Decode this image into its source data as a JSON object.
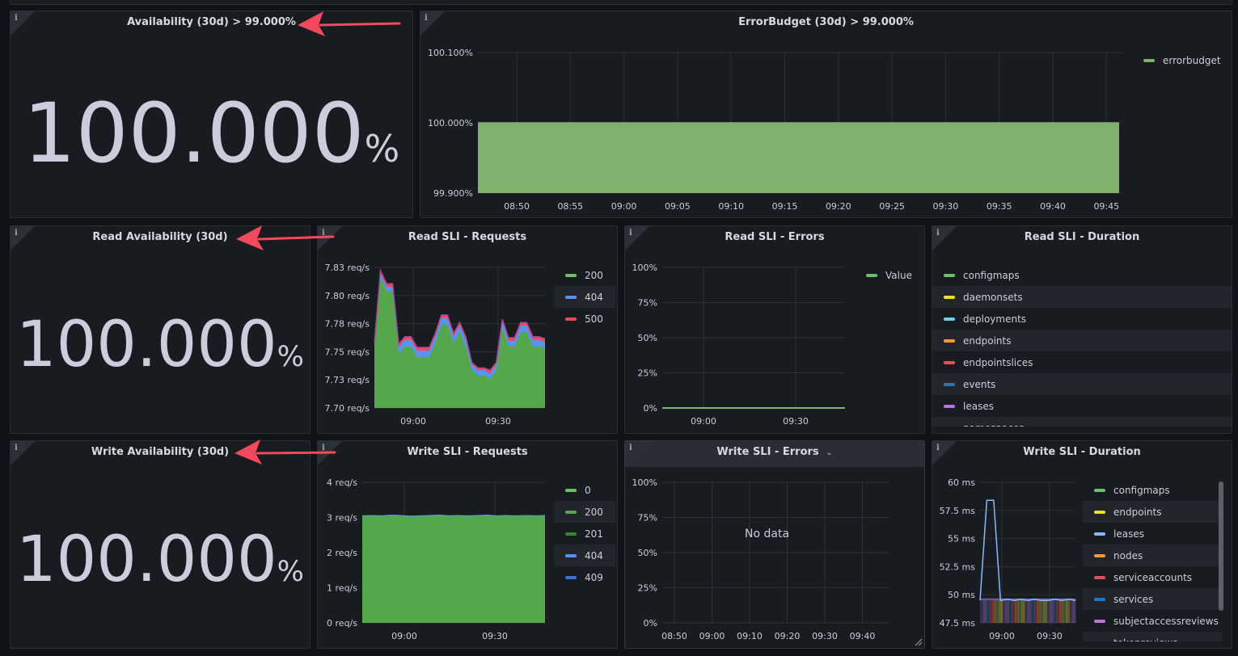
{
  "colors": {
    "green": "#73bf69",
    "green_fill": "#56a64b",
    "blue": "#5794f2",
    "red": "#f2495c",
    "yellow": "#fade2a",
    "cyan": "#8ab8ff",
    "orange": "#ff9830",
    "purple": "#b877d9",
    "arrow": "#f2495c"
  },
  "panels": {
    "availability": {
      "title": "Availability (30d) > 99.000%",
      "value": "100.000",
      "unit": "%"
    },
    "errorbudget": {
      "title": "ErrorBudget (30d) > 99.000%",
      "legend": [
        {
          "label": "errorbudget",
          "color": "#7eb26d"
        }
      ],
      "chart_data": {
        "type": "area",
        "y_ticks": [
          "100.100%",
          "100.000%",
          "99.900%"
        ],
        "x_ticks": [
          "08:50",
          "08:55",
          "09:00",
          "09:05",
          "09:10",
          "09:15",
          "09:20",
          "09:25",
          "09:30",
          "09:35",
          "09:40",
          "09:45"
        ],
        "ylim": [
          99.9,
          100.1
        ],
        "series": [
          {
            "name": "errorbudget",
            "values": [
              100.0,
              100.0
            ]
          }
        ]
      }
    },
    "read_availability": {
      "title": "Read Availability (30d)",
      "value": "100.000",
      "unit": "%"
    },
    "read_requests": {
      "title": "Read SLI - Requests",
      "legend": [
        {
          "label": "200",
          "color": "#73bf69"
        },
        {
          "label": "404",
          "color": "#5794f2"
        },
        {
          "label": "500",
          "color": "#f2495c"
        }
      ],
      "chart_data": {
        "type": "area",
        "y_ticks": [
          "7.83 req/s",
          "7.80 req/s",
          "7.78 req/s",
          "7.75 req/s",
          "7.73 req/s",
          "7.70 req/s"
        ],
        "x_ticks": [
          "09:00",
          "09:30"
        ],
        "ylim": [
          7.7,
          7.83
        ],
        "series": [
          {
            "name": "200",
            "values": [
              7.753,
              7.82,
              7.808,
              7.808,
              7.75,
              7.757,
              7.757,
              7.747,
              7.747,
              7.747,
              7.76,
              7.777,
              7.777,
              7.76,
              7.77,
              7.757,
              7.735,
              7.73,
              7.73,
              7.727,
              7.735,
              7.775,
              7.757,
              7.757,
              7.77,
              7.77,
              7.757,
              7.757,
              7.755
            ]
          },
          {
            "name": "404",
            "values": [
              7.757,
              7.824,
              7.812,
              7.812,
              7.756,
              7.763,
              7.763,
              7.753,
              7.753,
              7.753,
              7.766,
              7.783,
              7.783,
              7.766,
              7.776,
              7.763,
              7.74,
              7.735,
              7.735,
              7.732,
              7.74,
              7.78,
              7.762,
              7.762,
              7.776,
              7.776,
              7.763,
              7.763,
              7.761
            ]
          },
          {
            "name": "500",
            "values": [
              7.76,
              7.827,
              7.815,
              7.815,
              7.759,
              7.766,
              7.766,
              7.756,
              7.756,
              7.756,
              7.769,
              7.786,
              7.786,
              7.769,
              7.779,
              7.766,
              7.742,
              7.737,
              7.737,
              7.735,
              7.742,
              7.782,
              7.765,
              7.765,
              7.779,
              7.779,
              7.766,
              7.766,
              7.764
            ]
          }
        ]
      }
    },
    "read_errors": {
      "title": "Read SLI - Errors",
      "legend": [
        {
          "label": "Value",
          "color": "#73bf69"
        }
      ],
      "chart_data": {
        "type": "line",
        "y_ticks": [
          "100%",
          "75%",
          "50%",
          "25%",
          "0%"
        ],
        "x_ticks": [
          "09:00",
          "09:30"
        ],
        "ylim": [
          0,
          100
        ],
        "series": [
          {
            "name": "Value",
            "values": [
              0,
              0
            ]
          }
        ]
      }
    },
    "read_duration": {
      "title": "Read SLI - Duration",
      "legend": [
        {
          "label": "configmaps",
          "color": "#73bf69"
        },
        {
          "label": "daemonsets",
          "color": "#fade2a"
        },
        {
          "label": "deployments",
          "color": "#6ed0e0"
        },
        {
          "label": "endpoints",
          "color": "#ff9830"
        },
        {
          "label": "endpointslices",
          "color": "#f2495c"
        },
        {
          "label": "events",
          "color": "#1f78c1"
        },
        {
          "label": "leases",
          "color": "#b877d9"
        },
        {
          "label": "namespaces",
          "color": "#705da0"
        }
      ]
    },
    "write_availability": {
      "title": "Write Availability (30d)",
      "value": "100.000",
      "unit": "%"
    },
    "write_requests": {
      "title": "Write SLI - Requests",
      "legend": [
        {
          "label": "0",
          "color": "#73bf69"
        },
        {
          "label": "200",
          "color": "#56a64b"
        },
        {
          "label": "201",
          "color": "#37872d"
        },
        {
          "label": "404",
          "color": "#5794f2"
        },
        {
          "label": "409",
          "color": "#3274d9"
        }
      ],
      "chart_data": {
        "type": "area",
        "y_ticks": [
          "4 req/s",
          "3 req/s",
          "2 req/s",
          "1 req/s",
          "0 req/s"
        ],
        "x_ticks": [
          "09:00",
          "09:30"
        ],
        "ylim": [
          0,
          4
        ],
        "series": [
          {
            "name": "200",
            "values": [
              3.03,
              3.04,
              3.03,
              3.05,
              3.04,
              3.02,
              3.03,
              3.04,
              3.05,
              3.03,
              3.04,
              3.03,
              3.04,
              3.05,
              3.03,
              3.04,
              3.03,
              3.04,
              3.03,
              3.04
            ]
          }
        ]
      }
    },
    "write_errors": {
      "title": "Write SLI - Errors",
      "no_data": "No data",
      "chart_data": {
        "type": "line",
        "y_ticks": [
          "100%",
          "75%",
          "50%",
          "25%",
          "0%"
        ],
        "x_ticks": [
          "08:50",
          "09:00",
          "09:10",
          "09:20",
          "09:30",
          "09:40"
        ],
        "ylim": [
          0,
          100
        ],
        "series": []
      }
    },
    "write_duration": {
      "title": "Write SLI - Duration",
      "legend": [
        {
          "label": "configmaps",
          "color": "#73bf69"
        },
        {
          "label": "endpoints",
          "color": "#fade2a"
        },
        {
          "label": "leases",
          "color": "#8ab8ff"
        },
        {
          "label": "nodes",
          "color": "#ff9830"
        },
        {
          "label": "serviceaccounts",
          "color": "#f2495c"
        },
        {
          "label": "services",
          "color": "#1f78c1"
        },
        {
          "label": "subjectaccessreviews",
          "color": "#b877d9"
        },
        {
          "label": "tokenreviews",
          "color": "#705da0"
        }
      ],
      "chart_data": {
        "type": "line",
        "y_ticks": [
          "60 ms",
          "57.5 ms",
          "55 ms",
          "52.5 ms",
          "50 ms",
          "47.5 ms"
        ],
        "x_ticks": [
          "09:00",
          "09:30"
        ],
        "ylim": [
          47.5,
          60
        ],
        "series": [
          {
            "name": "leases",
            "values": [
              49.5,
              58.4,
              58.4,
              49.5,
              49.6,
              49.5,
              49.6,
              49.5,
              49.6,
              49.5,
              49.5,
              49.6,
              49.5,
              49.6,
              49.5
            ]
          }
        ]
      }
    }
  }
}
